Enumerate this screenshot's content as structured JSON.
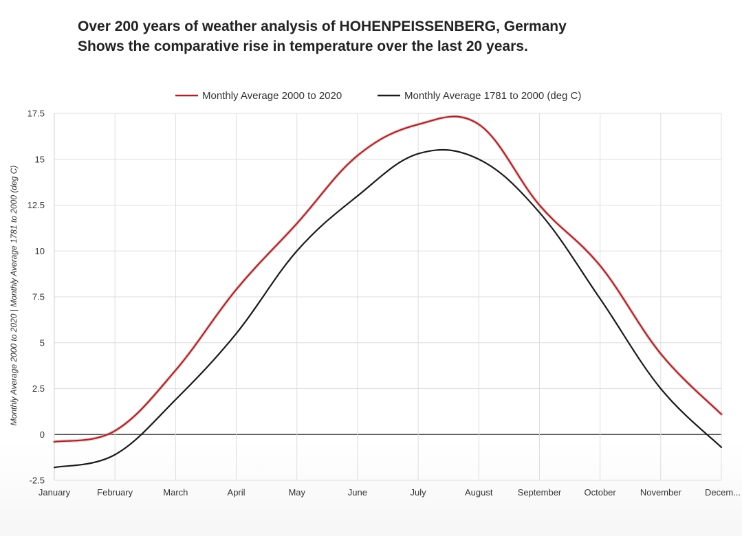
{
  "title": {
    "line1": "Over 200 years of weather analysis of HOHENPEISSENBERG, Germany",
    "line2": "Shows the comparative rise in temperature over the last 20 years."
  },
  "colors": {
    "recent": "#a3262a",
    "historic": "#1a1a1a",
    "grid": "#dddddd"
  },
  "chart_data": {
    "type": "line",
    "categories": [
      "January",
      "February",
      "March",
      "April",
      "May",
      "June",
      "July",
      "August",
      "September",
      "October",
      "November",
      "December"
    ],
    "x_tick_labels": [
      "January",
      "February",
      "March",
      "April",
      "May",
      "June",
      "July",
      "August",
      "September",
      "October",
      "November",
      "Decem..."
    ],
    "series": [
      {
        "name": "Monthly Average 2000 to 2020",
        "color": "#a3262a",
        "values": [
          -0.4,
          0.2,
          3.5,
          7.9,
          11.5,
          15.2,
          16.9,
          16.9,
          12.5,
          9.2,
          4.4,
          1.1
        ]
      },
      {
        "name": "Monthly Average 1781 to 2000 (deg C)",
        "color": "#1a1a1a",
        "values": [
          -1.8,
          -1.1,
          1.9,
          5.5,
          10.0,
          13.0,
          15.3,
          15.0,
          12.1,
          7.4,
          2.5,
          -0.7
        ]
      }
    ],
    "y_ticks": [
      -2.5,
      0,
      2.5,
      5,
      7.5,
      10,
      12.5,
      15,
      17.5
    ],
    "y_tick_labels": [
      "-2.5",
      "0",
      "2.5",
      "5",
      "7.5",
      "10",
      "12.5",
      "15",
      "17.5"
    ],
    "ylim": [
      -2.5,
      17.5
    ],
    "xlabel": "",
    "ylabel": "Monthly Average 2000 to 2020 | Monthly Average 1781 to 2000 (deg C)",
    "grid": true,
    "legend_position": "top-center"
  }
}
